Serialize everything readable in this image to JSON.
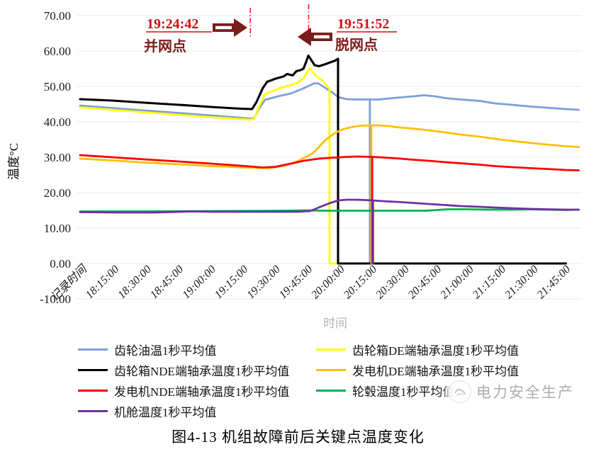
{
  "chart_data": {
    "type": "line",
    "title": "图4-13 机组故障前后关键点温度变化",
    "xlabel": "时间",
    "ylabel": "温度°C",
    "ylim": [
      -10,
      70
    ],
    "grid": true,
    "legend_position": "bottom",
    "y_ticks": [
      "70.00",
      "60.00",
      "50.00",
      "40.00",
      "30.00",
      "20.00",
      "10.00",
      "0.00",
      "-10.00"
    ],
    "y_tick_values": [
      70,
      60,
      50,
      40,
      30,
      20,
      10,
      0,
      -10
    ],
    "x_ticks": [
      "记录时间",
      "18:15:00",
      "18:30:00",
      "18:45:00",
      "19:00:00",
      "19:15:00",
      "19:30:00",
      "19:45:00",
      "20:00:00",
      "20:15:00",
      "20:30:00",
      "20:45:00",
      "21:00:00",
      "21:15:00",
      "21:30:00",
      "21:45:00"
    ],
    "x_unit_minutes_per_tick": 15,
    "series": [
      {
        "key": "gear-oil",
        "label": "齿轮油温1秒平均值",
        "color": "#7C9FD9",
        "width": 2.8,
        "points": [
          [
            0,
            44.6
          ],
          [
            15,
            43.9
          ],
          [
            30,
            43.2
          ],
          [
            46,
            42.5
          ],
          [
            61,
            41.8
          ],
          [
            72,
            41.3
          ],
          [
            79,
            40.9
          ],
          [
            81,
            41.0
          ],
          [
            83,
            43.5
          ],
          [
            86,
            46.2
          ],
          [
            92,
            47.2
          ],
          [
            98,
            48.0
          ],
          [
            103,
            49.2
          ],
          [
            109,
            50.9
          ],
          [
            111,
            50.8
          ],
          [
            114,
            49.6
          ],
          [
            118,
            48.0
          ],
          [
            120,
            47.0
          ],
          [
            124,
            46.4
          ],
          [
            128,
            46.3
          ],
          [
            134.8,
            46.3
          ],
          [
            134.8,
            0
          ],
          [
            134.8,
            46.3
          ],
          [
            139,
            46.3
          ],
          [
            147,
            46.8
          ],
          [
            155,
            47.2
          ],
          [
            160,
            47.5
          ],
          [
            165,
            47.2
          ],
          [
            170,
            46.7
          ],
          [
            177,
            46.3
          ],
          [
            186,
            45.9
          ],
          [
            193,
            45.2
          ],
          [
            201,
            44.8
          ],
          [
            210,
            44.3
          ],
          [
            217,
            44.0
          ],
          [
            226,
            43.6
          ],
          [
            232,
            43.4
          ]
        ]
      },
      {
        "key": "gearbox-de",
        "label": "齿轮箱DE端轴承温度1秒平均值",
        "color": "#FFFF00",
        "width": 2.8,
        "points": [
          [
            0,
            44.1
          ],
          [
            15,
            43.4
          ],
          [
            30,
            42.7
          ],
          [
            46,
            42.0
          ],
          [
            61,
            41.3
          ],
          [
            72,
            40.9
          ],
          [
            79,
            40.6
          ],
          [
            81,
            40.8
          ],
          [
            83,
            44.0
          ],
          [
            86,
            47.8
          ],
          [
            92,
            49.3
          ],
          [
            98,
            50.4
          ],
          [
            101,
            51.0
          ],
          [
            104,
            52.3
          ],
          [
            106,
            54.5
          ],
          [
            107,
            55.1
          ],
          [
            108,
            54.2
          ],
          [
            110,
            52.8
          ],
          [
            113,
            51.6
          ],
          [
            115,
            50.0
          ],
          [
            116,
            49.4
          ],
          [
            116,
            0
          ],
          [
            226,
            0
          ]
        ]
      },
      {
        "key": "gearbox-nde",
        "label": "齿轮箱NDE端轴承温度1秒平均值",
        "color": "#000000",
        "width": 3.1,
        "points": [
          [
            0,
            46.4
          ],
          [
            15,
            46.0
          ],
          [
            30,
            45.4
          ],
          [
            46,
            44.8
          ],
          [
            61,
            44.2
          ],
          [
            72,
            43.8
          ],
          [
            75,
            43.7
          ],
          [
            80,
            43.6
          ],
          [
            82,
            45.5
          ],
          [
            85,
            49.5
          ],
          [
            87,
            51.3
          ],
          [
            91,
            52.2
          ],
          [
            94.6,
            52.8
          ],
          [
            96.3,
            53.5
          ],
          [
            97.6,
            53.3
          ],
          [
            98.9,
            53.1
          ],
          [
            100.6,
            54.3
          ],
          [
            102.5,
            54.6
          ],
          [
            103.9,
            55.0
          ],
          [
            105.2,
            57.0
          ],
          [
            106.2,
            58.7
          ],
          [
            107.5,
            57.5
          ],
          [
            109.1,
            56.0
          ],
          [
            111.1,
            55.7
          ],
          [
            113.7,
            56.2
          ],
          [
            116.4,
            56.8
          ],
          [
            118.4,
            57.2
          ],
          [
            120,
            57.8
          ],
          [
            120,
            0
          ],
          [
            226,
            0
          ]
        ]
      },
      {
        "key": "generator-de",
        "label": "发电机DE端轴承温度1秒平均值",
        "color": "#FFC000",
        "width": 2.8,
        "points": [
          [
            0,
            29.6
          ],
          [
            15,
            29.1
          ],
          [
            30,
            28.5
          ],
          [
            46,
            28.0
          ],
          [
            61,
            27.5
          ],
          [
            77,
            27.1
          ],
          [
            88,
            26.9
          ],
          [
            95,
            27.6
          ],
          [
            101,
            28.8
          ],
          [
            108,
            31.0
          ],
          [
            111,
            32.8
          ],
          [
            114,
            34.8
          ],
          [
            118,
            36.6
          ],
          [
            121,
            37.6
          ],
          [
            124,
            38.2
          ],
          [
            128,
            38.7
          ],
          [
            131,
            38.9
          ],
          [
            135.5,
            39.0
          ],
          [
            135.5,
            0
          ],
          [
            135.5,
            39.0
          ],
          [
            139,
            39.0
          ],
          [
            144,
            38.8
          ],
          [
            147,
            38.5
          ],
          [
            155,
            38.1
          ],
          [
            162,
            37.6
          ],
          [
            170,
            37.0
          ],
          [
            177,
            36.4
          ],
          [
            186,
            35.8
          ],
          [
            193,
            35.2
          ],
          [
            201,
            34.6
          ],
          [
            210,
            34.0
          ],
          [
            217,
            33.6
          ],
          [
            226,
            33.1
          ],
          [
            232,
            32.9
          ]
        ]
      },
      {
        "key": "generator-nde",
        "label": "发电机NDE端轴承温度1秒平均值",
        "color": "#FF0000",
        "width": 2.8,
        "points": [
          [
            0,
            30.6
          ],
          [
            15,
            30.0
          ],
          [
            30,
            29.4
          ],
          [
            46,
            28.8
          ],
          [
            61,
            28.2
          ],
          [
            77,
            27.5
          ],
          [
            85,
            27.1
          ],
          [
            91,
            27.3
          ],
          [
            98,
            28.2
          ],
          [
            104,
            29.0
          ],
          [
            111,
            29.6
          ],
          [
            118,
            29.9
          ],
          [
            124,
            30.1
          ],
          [
            129,
            30.2
          ],
          [
            135.9,
            30.1
          ],
          [
            135.9,
            0
          ],
          [
            135.9,
            30.1
          ],
          [
            139,
            30.0
          ],
          [
            147,
            29.7
          ],
          [
            155,
            29.3
          ],
          [
            162,
            29.0
          ],
          [
            170,
            28.6
          ],
          [
            177,
            28.3
          ],
          [
            186,
            27.9
          ],
          [
            193,
            27.5
          ],
          [
            201,
            27.2
          ],
          [
            210,
            26.9
          ],
          [
            217,
            26.7
          ],
          [
            226,
            26.4
          ],
          [
            232,
            26.3
          ]
        ]
      },
      {
        "key": "hub",
        "label": "轮毂温度1秒平均值",
        "color": "#00B050",
        "width": 2.8,
        "points": [
          [
            0,
            14.7
          ],
          [
            30,
            14.7
          ],
          [
            62,
            14.8
          ],
          [
            95,
            14.9
          ],
          [
            105,
            15.0
          ],
          [
            115,
            14.9
          ],
          [
            136.2,
            14.9
          ],
          [
            136.2,
            0
          ],
          [
            136.2,
            14.9
          ],
          [
            147,
            14.9
          ],
          [
            161,
            14.9
          ],
          [
            171,
            15.3
          ],
          [
            180,
            15.3
          ],
          [
            190,
            15.2
          ],
          [
            201,
            15.2
          ],
          [
            210,
            15.3
          ],
          [
            217,
            15.2
          ],
          [
            226,
            15.1
          ],
          [
            232,
            15.2
          ]
        ]
      },
      {
        "key": "nacelle",
        "label": "机舱温度1秒平均值",
        "color": "#7030A0",
        "width": 2.8,
        "points": [
          [
            0,
            14.5
          ],
          [
            16,
            14.4
          ],
          [
            35,
            14.4
          ],
          [
            52,
            14.7
          ],
          [
            62,
            14.6
          ],
          [
            77,
            14.6
          ],
          [
            92,
            14.6
          ],
          [
            101,
            14.6
          ],
          [
            107,
            14.8
          ],
          [
            111,
            15.8
          ],
          [
            116,
            17.0
          ],
          [
            120,
            17.8
          ],
          [
            124,
            18.0
          ],
          [
            129,
            18.0
          ],
          [
            133,
            17.9
          ],
          [
            136.3,
            17.8
          ],
          [
            136.3,
            0
          ],
          [
            136.3,
            17.8
          ],
          [
            141,
            17.6
          ],
          [
            147,
            17.4
          ],
          [
            155,
            17.1
          ],
          [
            162,
            16.8
          ],
          [
            170,
            16.5
          ],
          [
            177,
            16.2
          ],
          [
            186,
            16.0
          ],
          [
            193,
            15.8
          ],
          [
            201,
            15.6
          ],
          [
            210,
            15.4
          ],
          [
            217,
            15.3
          ],
          [
            226,
            15.2
          ],
          [
            232,
            15.2
          ]
        ]
      }
    ],
    "annotations": [
      {
        "time": "19:24:42",
        "label": "并网点",
        "direction": "right",
        "line_min": 79.2
      },
      {
        "time": "19:51:52",
        "label": "脱网点",
        "direction": "left",
        "line_min": 106.3
      }
    ]
  },
  "legend_order": [
    0,
    1,
    2,
    3,
    4,
    5,
    6
  ],
  "watermark": {
    "text": "电力安全生产"
  },
  "caption": "图4-13 机组故障前后关键点温度变化",
  "colors": {
    "grid": "#EAEAEA",
    "axis_text": "#1A1A1A",
    "xlabel_text": "#B0B3BC",
    "annotation_time": "#CC1111",
    "annotation_label": "#7F1D1D",
    "arrow": "#7A1C1C",
    "dash_line": "#FF1A1A",
    "watermark": "#ACACAC"
  }
}
